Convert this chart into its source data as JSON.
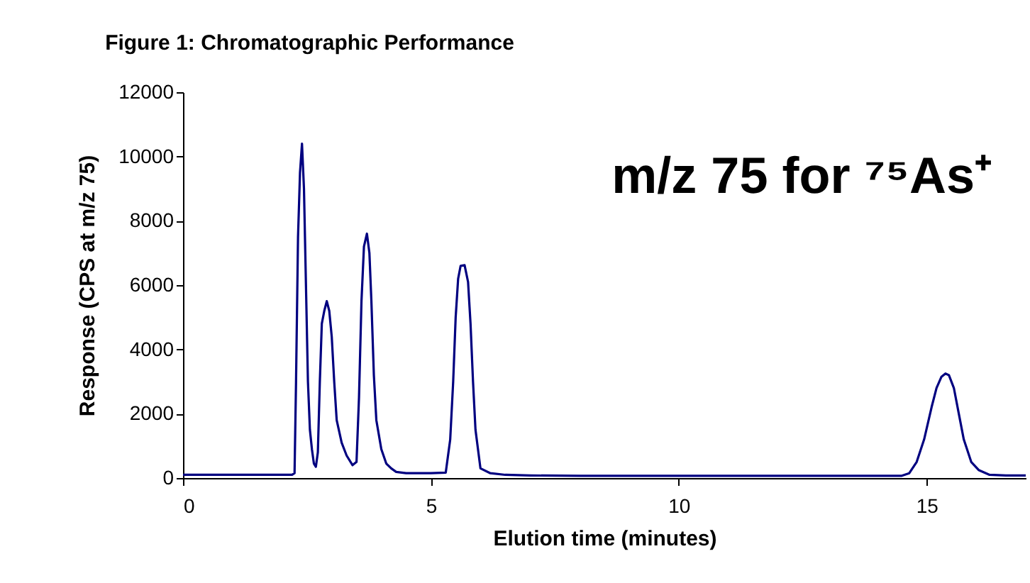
{
  "chart_data": {
    "type": "line",
    "title": "Figure 1: Chromatographic Performance",
    "xlabel": "Elution time (minutes)",
    "ylabel": "Response (CPS at m/z 75)",
    "annotations": [
      "m/z 75 for ⁷⁵As⁺"
    ],
    "series": [
      {
        "color": "#000080",
        "x": [
          0,
          1,
          2,
          2.2,
          2.25,
          2.28,
          2.32,
          2.36,
          2.4,
          2.44,
          2.48,
          2.52,
          2.56,
          2.6,
          2.64,
          2.68,
          2.72,
          2.76,
          2.8,
          2.85,
          2.9,
          2.95,
          3.0,
          3.05,
          3.1,
          3.2,
          3.3,
          3.42,
          3.5,
          3.55,
          3.6,
          3.65,
          3.71,
          3.76,
          3.8,
          3.85,
          3.9,
          4.0,
          4.1,
          4.2,
          4.3,
          4.5,
          5.0,
          5.3,
          5.39,
          5.45,
          5.5,
          5.55,
          5.6,
          5.68,
          5.75,
          5.8,
          5.85,
          5.9,
          6.0,
          6.2,
          6.5,
          7.0,
          8,
          9,
          10,
          11,
          12,
          13,
          14,
          14.5,
          14.65,
          14.8,
          14.95,
          15.1,
          15.2,
          15.3,
          15.38,
          15.45,
          15.55,
          15.65,
          15.75,
          15.9,
          16.05,
          16.27,
          16.6,
          17
        ],
        "values": [
          100,
          100,
          100,
          100,
          150,
          3000,
          7500,
          9500,
          10400,
          9000,
          6000,
          3000,
          1500,
          900,
          450,
          350,
          800,
          3000,
          4800,
          5200,
          5500,
          5200,
          4400,
          3000,
          1800,
          1100,
          700,
          400,
          500,
          2500,
          5500,
          7200,
          7600,
          7000,
          5500,
          3200,
          1800,
          900,
          450,
          300,
          190,
          150,
          150,
          170,
          1200,
          3000,
          5000,
          6200,
          6600,
          6620,
          6100,
          4800,
          3000,
          1500,
          300,
          150,
          100,
          80,
          70,
          70,
          70,
          70,
          70,
          70,
          70,
          70,
          150,
          500,
          1200,
          2200,
          2800,
          3150,
          3250,
          3200,
          2800,
          2000,
          1200,
          500,
          250,
          100,
          80,
          80
        ]
      }
    ],
    "xlim": [
      0,
      17
    ],
    "xticks": [
      0,
      5,
      10,
      15
    ],
    "ylim": [
      0,
      12000
    ],
    "yticks": [
      0,
      2000,
      4000,
      6000,
      8000,
      10000,
      12000
    ],
    "grid": false,
    "legend": false,
    "marker": "none",
    "line_style": "solid"
  }
}
